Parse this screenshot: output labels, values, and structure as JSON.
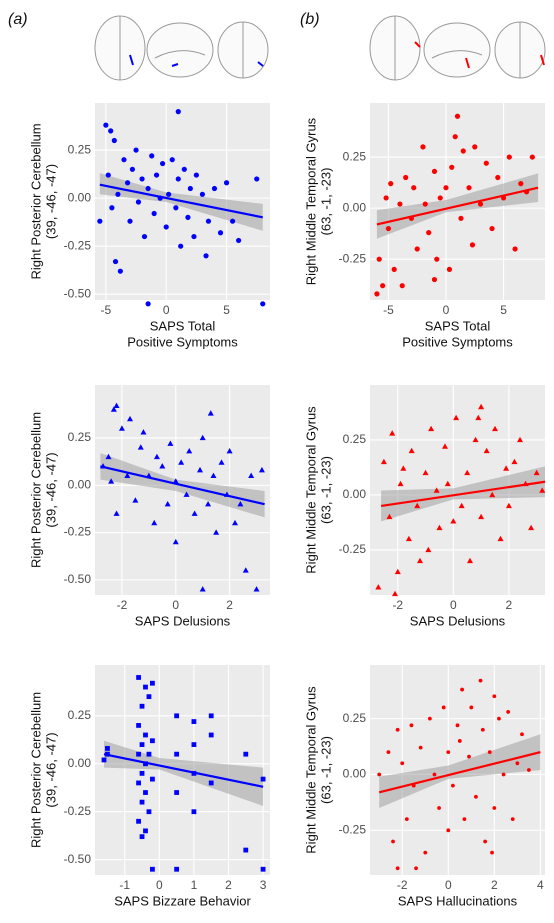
{
  "panel_labels": [
    "(a)",
    "(b)"
  ],
  "chart_data": [
    {
      "type": "scatter",
      "marker": "circle",
      "color": "#0000ff",
      "x_label": [
        "SAPS Total",
        "Positive Symptoms"
      ],
      "y_label": [
        "Right Posterior Cerebellum",
        "(39, -46, -47)"
      ],
      "xlim": [
        -5.9,
        8.6
      ],
      "ylim": [
        -0.53,
        0.495
      ],
      "xticks": [
        -5,
        0,
        5
      ],
      "yticks": [
        -0.25,
        {
          "value": -0.5,
          "label": "-0.50"
        },
        {
          "value": 0,
          "label": "0.00"
        },
        0.25
      ],
      "x": [
        -5,
        -4.8,
        -4.6,
        -4.5,
        -4.3,
        -4,
        -3.8,
        -3.5,
        -3.2,
        -3,
        -2.8,
        -2.5,
        -2.3,
        -2,
        -1.8,
        -1.5,
        -1.2,
        -1,
        -0.8,
        -0.5,
        -0.3,
        0,
        0.2,
        0.5,
        0.8,
        1,
        1.2,
        1.5,
        1.8,
        2,
        2.3,
        2.5,
        3,
        3.3,
        3.5,
        4,
        4.5,
        5,
        5.5,
        6,
        7.5,
        8,
        -5.5,
        -4.2,
        1,
        -1.5
      ],
      "y": [
        0.38,
        0.12,
        0.35,
        -0.05,
        0.3,
        0.02,
        -0.38,
        0.2,
        0.08,
        -0.12,
        0.15,
        0.25,
        -0.02,
        0.1,
        -0.2,
        0.05,
        0.22,
        -0.08,
        0.12,
        0,
        0.18,
        -0.15,
        0.02,
        0.2,
        -0.05,
        0.1,
        -0.25,
        0.15,
        -0.1,
        0.05,
        -0.2,
        0.12,
        0.02,
        -0.3,
        -0.12,
        0.05,
        -0.18,
        0.08,
        -0.12,
        -0.22,
        0.1,
        -0.55,
        -0.12,
        -0.33,
        0.45,
        -0.55
      ],
      "fit": {
        "x": [
          -5.5,
          8
        ],
        "y": [
          0.07,
          -0.1
        ]
      },
      "ci": {
        "x": [
          -5.5,
          0,
          8
        ],
        "lower": [
          0.02,
          -0.02,
          -0.17
        ],
        "upper": [
          0.13,
          0.03,
          -0.03
        ]
      }
    },
    {
      "type": "scatter",
      "marker": "circle",
      "color": "#ff0000",
      "x_label": [
        "SAPS Total",
        "Positive Symptoms"
      ],
      "y_label": [
        "Right Middle Temporal Gyrus",
        "(63, -1, -23)"
      ],
      "xlim": [
        -6.6,
        8.6
      ],
      "ylim": [
        -0.45,
        0.515
      ],
      "xticks": [
        -5,
        0,
        5
      ],
      "yticks": [
        -0.25,
        {
          "value": 0,
          "label": "0.00"
        },
        0.25
      ],
      "x": [
        -6,
        -5.8,
        -5.5,
        -5.2,
        -5,
        -4.8,
        -4.5,
        -4,
        -3.8,
        -3.5,
        -3,
        -2.8,
        -2.5,
        -2,
        -1.8,
        -1.5,
        -1,
        -0.8,
        -0.5,
        0,
        0.3,
        0.5,
        1,
        1.3,
        1.5,
        2,
        2.3,
        2.5,
        3,
        3.5,
        4,
        4.5,
        5,
        5.5,
        6,
        6.5,
        7,
        7.5,
        -1,
        0.8
      ],
      "y": [
        -0.42,
        -0.25,
        -0.38,
        0.05,
        -0.1,
        0.12,
        -0.3,
        0.02,
        -0.38,
        0.15,
        -0.05,
        0.1,
        -0.2,
        0.3,
        0.02,
        -0.12,
        0.18,
        -0.25,
        0.05,
        0.1,
        -0.3,
        0.2,
        0.45,
        -0.05,
        0.28,
        0.1,
        -0.18,
        0.3,
        0.02,
        0.22,
        -0.1,
        0.15,
        0.05,
        0.25,
        -0.2,
        0.12,
        0.08,
        0.25,
        -0.35,
        0.35
      ],
      "fit": {
        "x": [
          -6,
          8
        ],
        "y": [
          -0.08,
          0.1
        ]
      },
      "ci": {
        "x": [
          -6,
          0,
          8
        ],
        "lower": [
          -0.15,
          -0.02,
          0.03
        ],
        "upper": [
          -0.01,
          0.04,
          0.17
        ]
      }
    },
    {
      "type": "scatter",
      "marker": "triangle",
      "color": "#0000ff",
      "x_label": [
        "SAPS Delusions"
      ],
      "y_label": [
        "Right Posterior Cerebellum",
        "(39, -46, -47)"
      ],
      "xlim": [
        -3.0,
        3.5
      ],
      "ylim": [
        -0.58,
        0.53
      ],
      "xticks": [
        -2,
        0,
        2
      ],
      "yticks": [
        -0.25,
        {
          "value": -0.5,
          "label": "-0.50"
        },
        {
          "value": 0,
          "label": "0.00"
        },
        0.25
      ],
      "x": [
        -2.7,
        -2.5,
        -2.4,
        -2.2,
        -2.2,
        -2,
        -1.8,
        -1.7,
        -1.5,
        -1.3,
        -1.2,
        -1,
        -0.8,
        -0.7,
        -0.5,
        -0.3,
        -0.2,
        0,
        0,
        0.2,
        0.4,
        0.5,
        0.7,
        0.9,
        1,
        1,
        1.2,
        1.4,
        1.5,
        1.7,
        1.9,
        2,
        2.2,
        2.4,
        2.6,
        2.8,
        3,
        3.2,
        -2.3,
        1.3
      ],
      "y": [
        0.1,
        0.15,
        0.02,
        0.42,
        -0.15,
        0.3,
        0.05,
        0.35,
        -0.08,
        0.2,
        0.28,
        0.05,
        -0.2,
        0.15,
        0.1,
        -0.1,
        0.22,
        0.02,
        -0.3,
        0.12,
        -0.05,
        0.18,
        -0.15,
        0.08,
        -0.55,
        0.25,
        -0.1,
        0.05,
        -0.25,
        0.12,
        -0.05,
        0.18,
        -0.2,
        -0.1,
        -0.45,
        0.05,
        -0.55,
        0.08,
        0.4,
        0.38
      ],
      "fit": {
        "x": [
          -2.8,
          3.3
        ],
        "y": [
          0.1,
          -0.1
        ]
      },
      "ci": {
        "x": [
          -2.8,
          0,
          3.3
        ],
        "lower": [
          0.03,
          -0.03,
          -0.17
        ],
        "upper": [
          0.17,
          0.03,
          -0.03
        ]
      }
    },
    {
      "type": "scatter",
      "marker": "triangle",
      "color": "#ff0000",
      "x_label": [
        "SAPS Delusions"
      ],
      "y_label": [
        "Right Middle Temporal Gyrus",
        "(63, -1, -23)"
      ],
      "xlim": [
        -3.0,
        3.3
      ],
      "ylim": [
        -0.455,
        0.5
      ],
      "xticks": [
        -2,
        0,
        2
      ],
      "yticks": [
        -0.25,
        {
          "value": 0,
          "label": "0.00"
        },
        0.25
      ],
      "x": [
        -2.7,
        -2.5,
        -2.3,
        -2.2,
        -2,
        -1.9,
        -1.8,
        -1.6,
        -1.5,
        -1.3,
        -1.2,
        -1,
        -0.9,
        -0.8,
        -0.6,
        -0.5,
        -0.3,
        -0.2,
        0,
        0.1,
        0.3,
        0.5,
        0.6,
        0.8,
        1,
        1,
        1.2,
        1.4,
        1.5,
        1.7,
        1.9,
        2,
        2.2,
        2.4,
        2.6,
        2.8,
        3,
        3.2,
        -2.1,
        0.9
      ],
      "y": [
        -0.42,
        0.15,
        -0.1,
        0.28,
        -0.35,
        0.05,
        0.12,
        -0.2,
        0.2,
        -0.05,
        -0.3,
        0.1,
        -0.25,
        0.3,
        0.02,
        -0.15,
        0.22,
        0.05,
        -0.12,
        0.35,
        -0.05,
        0.1,
        -0.3,
        0.25,
        0.4,
        -0.1,
        0.2,
        0,
        0.3,
        -0.2,
        0.12,
        -0.05,
        0.15,
        0.25,
        0.05,
        -0.15,
        0.1,
        0.02,
        -0.45,
        0.35
      ],
      "fit": {
        "x": [
          -2.6,
          3.3
        ],
        "y": [
          -0.05,
          0.06
        ]
      },
      "ci": {
        "x": [
          -2.6,
          0,
          3.3
        ],
        "lower": [
          -0.12,
          -0.02,
          -0.01
        ],
        "upper": [
          0.02,
          0.03,
          0.13
        ]
      }
    },
    {
      "type": "scatter",
      "marker": "square",
      "color": "#0000ff",
      "x_label": [
        "SAPS Bizzare Behavior"
      ],
      "y_label": [
        "Right Posterior Cerebellum",
        "(39, -46, -47)"
      ],
      "xlim": [
        -1.86,
        3.2
      ],
      "ylim": [
        -0.58,
        0.515
      ],
      "xticks": [
        -1,
        0,
        1,
        2,
        3
      ],
      "yticks": [
        -0.25,
        {
          "value": -0.5,
          "label": "-0.50"
        },
        {
          "value": 0,
          "label": "0.00"
        },
        0.25
      ],
      "x": [
        -1.6,
        -1.5,
        -1.5,
        -0.6,
        -0.6,
        -0.6,
        -0.6,
        -0.6,
        -0.5,
        -0.5,
        -0.5,
        -0.5,
        -0.5,
        -0.4,
        -0.4,
        -0.4,
        -0.4,
        -0.3,
        -0.3,
        -0.3,
        -0.2,
        -0.2,
        -0.2,
        -0.2,
        0.5,
        0.5,
        0.5,
        0.5,
        1,
        1,
        1,
        1,
        1.5,
        1.5,
        1.5,
        2.5,
        2.5,
        3,
        3,
        -0.4
      ],
      "y": [
        0.02,
        0.05,
        0.08,
        0.45,
        0.2,
        0.05,
        -0.1,
        -0.3,
        0.3,
        0.1,
        -0.05,
        -0.2,
        -0.38,
        0.4,
        0.15,
        0,
        -0.15,
        0.35,
        -0.25,
        0.05,
        0.42,
        0.12,
        -0.08,
        -0.55,
        0.25,
        0.05,
        -0.15,
        -0.55,
        0.22,
        0.1,
        -0.05,
        -0.25,
        0.15,
        -0.1,
        0.25,
        -0.45,
        0.05,
        -0.08,
        -0.55,
        -0.35
      ],
      "fit": {
        "x": [
          -1.6,
          3
        ],
        "y": [
          0.05,
          -0.12
        ]
      },
      "ci": {
        "x": [
          -1.6,
          0,
          3
        ],
        "lower": [
          -0.02,
          -0.03,
          -0.22
        ],
        "upper": [
          0.12,
          0.03,
          -0.02
        ]
      }
    },
    {
      "type": "scatter",
      "marker": "dot",
      "color": "#ff0000",
      "x_label": [
        "SAPS Hallucinations"
      ],
      "y_label": [
        "Right Middle Temporal Gyrus",
        "(63, -1, -23)"
      ],
      "xlim": [
        -3.4,
        4.2
      ],
      "ylim": [
        -0.45,
        0.49
      ],
      "xticks": [
        -2,
        0,
        2,
        4
      ],
      "yticks": [
        -0.25,
        {
          "value": 0,
          "label": "0.00"
        },
        0.25
      ],
      "x": [
        -3,
        -2.6,
        -2.4,
        -2.2,
        -2.2,
        -2,
        -1.8,
        -1.6,
        -1.5,
        -1.2,
        -1,
        -0.8,
        -0.6,
        -0.4,
        -0.2,
        0,
        0,
        0.2,
        0.4,
        0.5,
        0.7,
        0.9,
        1,
        1.2,
        1.4,
        1.5,
        1.6,
        1.8,
        2,
        2,
        2.2,
        2.4,
        2.6,
        2.8,
        3,
        3.2,
        3.5,
        -1.4,
        0.6,
        1.9
      ],
      "y": [
        0,
        0.1,
        -0.3,
        -0.42,
        0.2,
        0.05,
        -0.2,
        0.22,
        -0.05,
        0.12,
        -0.35,
        0.25,
        0,
        -0.15,
        0.3,
        0.1,
        -0.25,
        -0.05,
        0.22,
        0.15,
        -0.2,
        0.08,
        0.3,
        -0.1,
        0.42,
        0.2,
        -0.3,
        0.1,
        0.35,
        -0.15,
        0.25,
        0,
        0.28,
        -0.2,
        0.05,
        0.18,
        0.02,
        -0.42,
        0.38,
        -0.35
      ],
      "fit": {
        "x": [
          -3,
          4
        ],
        "y": [
          -0.08,
          0.1
        ]
      },
      "ci": {
        "x": [
          -3,
          0,
          4
        ],
        "lower": [
          -0.15,
          -0.02,
          0.02
        ],
        "upper": [
          -0.01,
          0.04,
          0.18
        ]
      }
    }
  ]
}
